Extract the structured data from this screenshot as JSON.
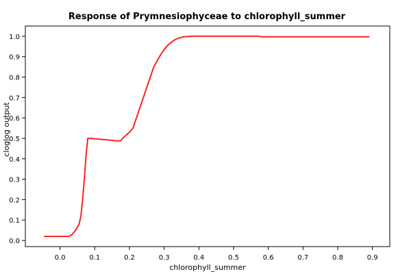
{
  "chart_data": {
    "type": "line",
    "title": "Response of Prymnesiophyceae to chlorophyll_summer",
    "xlabel": "chlorophyll_summer",
    "ylabel": "cloglog output",
    "xlim": [
      -0.1,
      0.95
    ],
    "ylim": [
      -0.03,
      1.05
    ],
    "x_ticks": [
      "0.0",
      "0.1",
      "0.2",
      "0.3",
      "0.4",
      "0.5",
      "0.6",
      "0.7",
      "0.8",
      "0.9"
    ],
    "y_ticks": [
      "0.0",
      "0.1",
      "0.2",
      "0.3",
      "0.4",
      "0.5",
      "0.6",
      "0.7",
      "0.8",
      "0.9",
      "1.0"
    ],
    "grid": true,
    "line_color": "#ff2020",
    "series": [
      {
        "x": [
          -0.045,
          0.025,
          0.035,
          0.045,
          0.055,
          0.06,
          0.065,
          0.07,
          0.075,
          0.08,
          0.085,
          0.09,
          0.1,
          0.12,
          0.14,
          0.16,
          0.175,
          0.18,
          0.19,
          0.2,
          0.21,
          0.22,
          0.23,
          0.24,
          0.25,
          0.26,
          0.27,
          0.28,
          0.29,
          0.3,
          0.31,
          0.32,
          0.33,
          0.34,
          0.35,
          0.36,
          0.38,
          0.4,
          0.5,
          0.57,
          0.58,
          0.7,
          0.8,
          0.89
        ],
        "y": [
          0.02,
          0.02,
          0.03,
          0.05,
          0.08,
          0.12,
          0.2,
          0.3,
          0.42,
          0.5,
          0.5,
          0.5,
          0.498,
          0.495,
          0.492,
          0.488,
          0.488,
          0.5,
          0.515,
          0.53,
          0.55,
          0.6,
          0.65,
          0.7,
          0.75,
          0.8,
          0.85,
          0.88,
          0.91,
          0.935,
          0.955,
          0.97,
          0.982,
          0.99,
          0.995,
          0.998,
          1.0,
          1.0,
          1.0,
          1.0,
          0.997,
          0.997,
          0.997,
          0.997
        ]
      }
    ]
  }
}
